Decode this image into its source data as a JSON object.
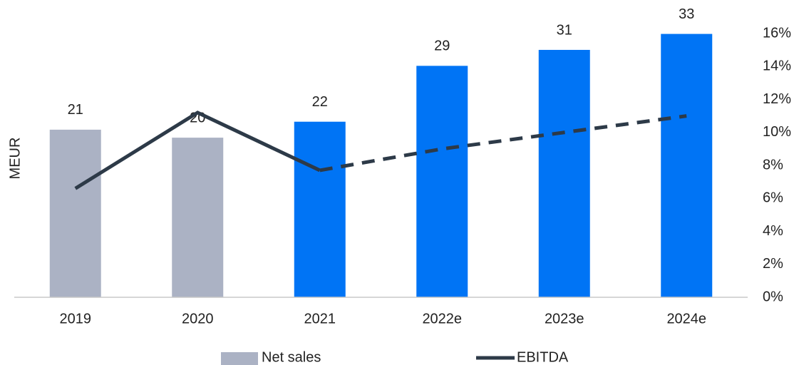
{
  "chart_data": {
    "type": "bar",
    "categories": [
      "2019",
      "2020",
      "2021",
      "2022e",
      "2023e",
      "2024e"
    ],
    "ylabel": "MEUR",
    "ylim": [
      0,
      36
    ],
    "y2lim": [
      0,
      16
    ],
    "y2ticks": [
      {
        "value": 0,
        "label": "0%"
      },
      {
        "value": 2,
        "label": "2%"
      },
      {
        "value": 4,
        "label": "4%"
      },
      {
        "value": 6,
        "label": "6%"
      },
      {
        "value": 8,
        "label": "8%"
      },
      {
        "value": 10,
        "label": "10%"
      },
      {
        "value": 12,
        "label": "12%"
      },
      {
        "value": 14,
        "label": "14%"
      },
      {
        "value": 16,
        "label": "16%"
      }
    ],
    "legend": "bottom",
    "series": [
      {
        "name": "Net sales",
        "type": "bar",
        "color": "#abb2c4",
        "colors": [
          "#abb2c4",
          "#abb2c4",
          "#0074f5",
          "#0074f5",
          "#0074f5",
          "#0074f5"
        ],
        "values": [
          21,
          20,
          22,
          29,
          31,
          33
        ]
      },
      {
        "name": "EBITDA",
        "type": "line",
        "axis": "y2",
        "color": "#2d3a48",
        "dashed_from": "2021",
        "values": [
          6.6,
          11.2,
          7.7,
          9.0,
          10.0,
          11.0
        ]
      }
    ]
  }
}
